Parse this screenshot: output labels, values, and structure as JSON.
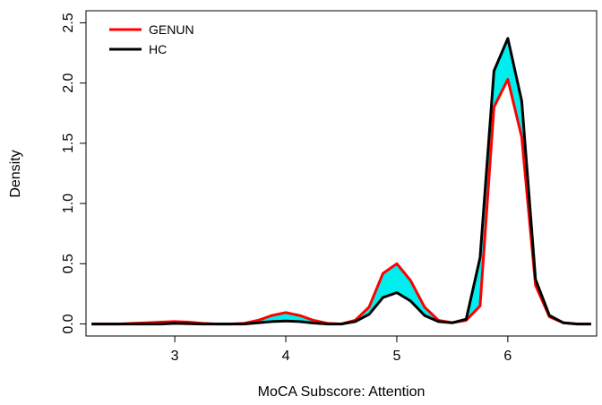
{
  "chart_data": {
    "type": "line",
    "title": "",
    "xlabel": "MoCA Subscore: Attention",
    "ylabel": "Density",
    "xlim": [
      2.2,
      6.8
    ],
    "ylim": [
      -0.1,
      2.6
    ],
    "x_ticks": [
      3,
      4,
      5,
      6
    ],
    "y_ticks": [
      0.0,
      0.5,
      1.0,
      1.5,
      2.0,
      2.5
    ],
    "x_tick_labels": [
      "3",
      "4",
      "5",
      "6"
    ],
    "y_tick_labels": [
      "0.0",
      "0.5",
      "1.0",
      "1.5",
      "2.0",
      "2.5"
    ],
    "grid": false,
    "legend_position": "top-left",
    "fill_between_color": "#00eeee",
    "x": [
      2.25,
      2.375,
      2.5,
      2.625,
      2.75,
      2.875,
      3.0,
      3.125,
      3.25,
      3.375,
      3.5,
      3.625,
      3.75,
      3.875,
      4.0,
      4.125,
      4.25,
      4.375,
      4.5,
      4.625,
      4.75,
      4.875,
      5.0,
      5.125,
      5.25,
      5.375,
      5.5,
      5.625,
      5.75,
      5.875,
      6.0,
      6.125,
      6.25,
      6.375,
      6.5,
      6.625,
      6.75
    ],
    "series": [
      {
        "name": "GENUN",
        "color": "#ff0000",
        "values": [
          0.0,
          0.0,
          0.0,
          0.005,
          0.01,
          0.015,
          0.02,
          0.015,
          0.005,
          0.0,
          0.0,
          0.005,
          0.03,
          0.07,
          0.095,
          0.07,
          0.03,
          0.005,
          0.0,
          0.03,
          0.14,
          0.42,
          0.5,
          0.36,
          0.14,
          0.03,
          0.01,
          0.03,
          0.15,
          1.8,
          2.03,
          1.55,
          0.32,
          0.06,
          0.01,
          0.0,
          0.0
        ]
      },
      {
        "name": "HC",
        "color": "#000000",
        "values": [
          0.0,
          0.0,
          0.0,
          0.0,
          0.0,
          0.0,
          0.005,
          0.003,
          0.0,
          0.0,
          0.0,
          0.0,
          0.01,
          0.02,
          0.025,
          0.02,
          0.008,
          0.0,
          0.0,
          0.02,
          0.08,
          0.22,
          0.26,
          0.19,
          0.07,
          0.02,
          0.01,
          0.04,
          0.55,
          2.1,
          2.37,
          1.85,
          0.37,
          0.07,
          0.01,
          0.0,
          0.0
        ]
      }
    ]
  }
}
